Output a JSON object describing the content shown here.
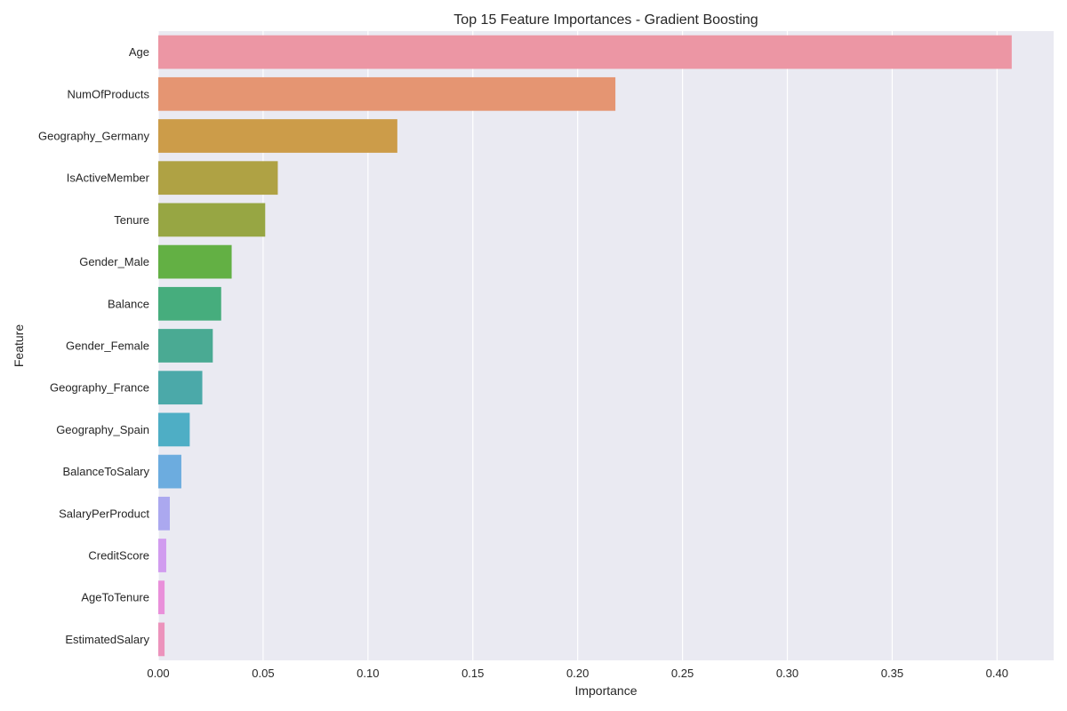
{
  "chart_data": {
    "type": "bar",
    "orientation": "horizontal",
    "title": "Top 15 Feature Importances - Gradient Boosting",
    "xlabel": "Importance",
    "ylabel": "Feature",
    "xlim": [
      0,
      0.427
    ],
    "grid": true,
    "xticks": [
      0.0,
      0.05,
      0.1,
      0.15,
      0.2,
      0.25,
      0.3,
      0.35,
      0.4
    ],
    "xtick_labels": [
      "0.00",
      "0.05",
      "0.10",
      "0.15",
      "0.20",
      "0.25",
      "0.30",
      "0.35",
      "0.40"
    ],
    "categories": [
      "Age",
      "NumOfProducts",
      "Geography_Germany",
      "IsActiveMember",
      "Tenure",
      "Gender_Male",
      "Balance",
      "Gender_Female",
      "Geography_France",
      "Geography_Spain",
      "BalanceToSalary",
      "SalaryPerProduct",
      "CreditScore",
      "AgeToTenure",
      "EstimatedSalary"
    ],
    "values": [
      0.407,
      0.218,
      0.114,
      0.057,
      0.051,
      0.035,
      0.03,
      0.026,
      0.021,
      0.015,
      0.011,
      0.0055,
      0.0038,
      0.003,
      0.003
    ],
    "colors": [
      "#ec96a4",
      "#e59572",
      "#cc9c49",
      "#afa244",
      "#97a643",
      "#63b044",
      "#46ad7d",
      "#4aaa93",
      "#4ba9a9",
      "#4eaec5",
      "#6cacdf",
      "#aba8ef",
      "#d19cef",
      "#e990da",
      "#ec93bc"
    ],
    "background_color": "#eaeaf2"
  }
}
